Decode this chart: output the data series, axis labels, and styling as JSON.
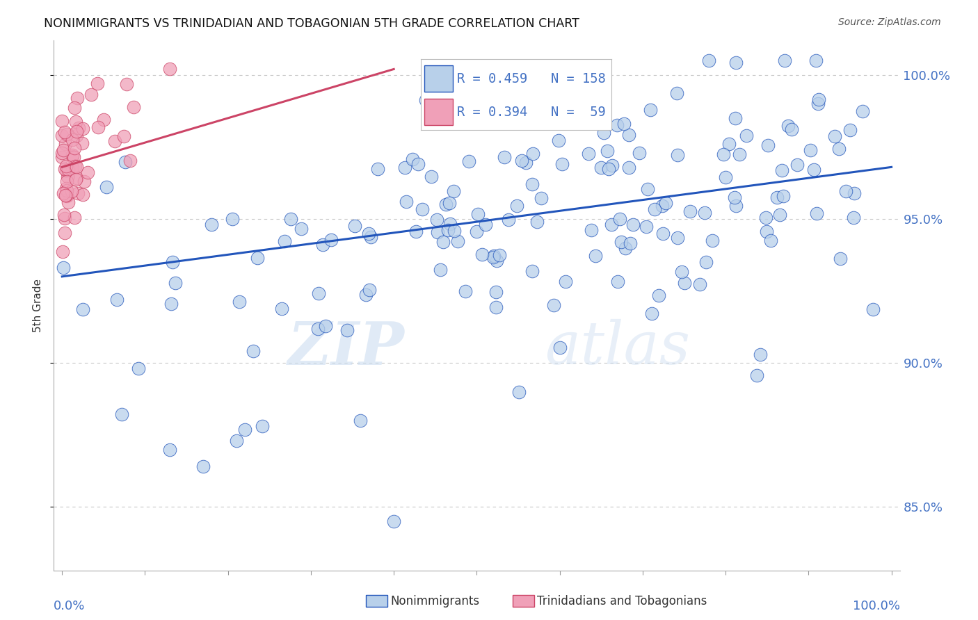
{
  "title": "NONIMMIGRANTS VS TRINIDADIAN AND TOBAGONIAN 5TH GRADE CORRELATION CHART",
  "source": "Source: ZipAtlas.com",
  "ylabel": "5th Grade",
  "blue_R": 0.459,
  "blue_N": 158,
  "pink_R": 0.394,
  "pink_N": 59,
  "blue_color": "#b8d0ea",
  "blue_line_color": "#2255bb",
  "pink_color": "#f0a0b8",
  "pink_line_color": "#cc4466",
  "watermark_zip": "ZIP",
  "watermark_atlas": "atlas",
  "y_ticks": [
    "85.0%",
    "90.0%",
    "95.0%",
    "100.0%"
  ],
  "y_tick_vals": [
    0.85,
    0.9,
    0.95,
    1.0
  ],
  "ylim_min": 0.828,
  "ylim_max": 1.012,
  "background_color": "#ffffff",
  "legend_label_blue": "Nonimmigrants",
  "legend_label_pink": "Trinidadians and Tobagonians",
  "title_color": "#111111",
  "axis_label_color": "#4472c4",
  "grid_color": "#c8c8c8",
  "title_fontsize": 12.5,
  "source_fontsize": 10,
  "tick_label_fontsize": 13
}
